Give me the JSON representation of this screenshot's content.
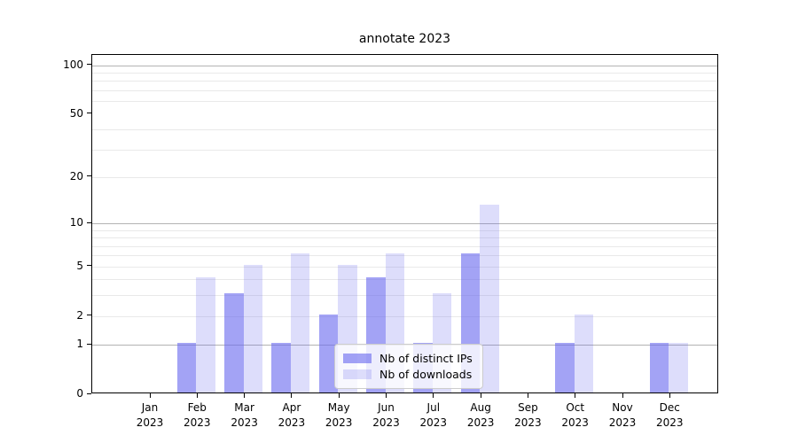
{
  "title": "annotate 2023",
  "chart_data": {
    "type": "bar",
    "title": "annotate 2023",
    "categories": [
      "Jan 2023",
      "Feb 2023",
      "Mar 2023",
      "Apr 2023",
      "May 2023",
      "Jun 2023",
      "Jul 2023",
      "Aug 2023",
      "Sep 2023",
      "Oct 2023",
      "Nov 2023",
      "Dec 2023"
    ],
    "x_tick_line1": [
      "Jan",
      "Feb",
      "Mar",
      "Apr",
      "May",
      "Jun",
      "Jul",
      "Aug",
      "Sep",
      "Oct",
      "Nov",
      "Dec"
    ],
    "x_tick_line2": [
      "2023",
      "2023",
      "2023",
      "2023",
      "2023",
      "2023",
      "2023",
      "2023",
      "2023",
      "2023",
      "2023",
      "2023"
    ],
    "series": [
      {
        "name": "Nb of distinct IPs",
        "values": [
          0,
          1,
          3,
          1,
          2,
          4,
          1,
          6,
          0,
          1,
          0,
          1
        ],
        "color_rgb": "102,102,238",
        "alpha": 0.6
      },
      {
        "name": "Nb of downloads",
        "values": [
          0,
          4,
          5,
          6,
          5,
          6,
          3,
          13,
          0,
          2,
          0,
          1
        ],
        "color_rgb": "102,102,238",
        "alpha": 0.22
      }
    ],
    "xlabel": "",
    "ylabel": "",
    "y_scale": "log10(1+v)",
    "y_ticks": [
      0,
      1,
      2,
      5,
      10,
      20,
      50,
      100
    ],
    "y_tick_labels": [
      "0",
      "1",
      "2",
      "5",
      "10",
      "20",
      "50",
      "100"
    ],
    "y_major_gridlines": [
      1,
      10,
      100
    ],
    "y_minor_gridlines": [
      2,
      3,
      4,
      5,
      6,
      7,
      8,
      9,
      20,
      30,
      40,
      60,
      70,
      80,
      90
    ],
    "ylim": [
      0,
      115
    ],
    "grid": "on",
    "legend_position": "lower center",
    "legend_entries": [
      "Nb of distinct IPs",
      "Nb of downloads"
    ],
    "colors": {
      "bar_dark": "#a6a6f1",
      "bar_light": "#dcdcf9",
      "grid_major": "#b3b3b3",
      "grid_minor": "#e9e9e9",
      "spine": "#000000",
      "text": "#000000",
      "legend_border": "#cccccc"
    }
  }
}
